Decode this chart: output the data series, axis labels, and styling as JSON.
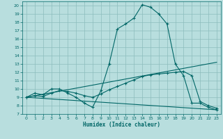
{
  "background_color": "#b8dede",
  "grid_color": "#8cbcbc",
  "line_color": "#006666",
  "xlim": [
    -0.5,
    23.5
  ],
  "ylim": [
    7,
    20.5
  ],
  "xticks": [
    0,
    1,
    2,
    3,
    4,
    5,
    6,
    7,
    8,
    9,
    10,
    11,
    12,
    13,
    14,
    15,
    16,
    17,
    18,
    19,
    20,
    21,
    22,
    23
  ],
  "yticks": [
    7,
    8,
    9,
    10,
    11,
    12,
    13,
    14,
    15,
    16,
    17,
    18,
    19,
    20
  ],
  "xlabel": "Humidex (Indice chaleur)",
  "line1_x": [
    0,
    1,
    2,
    3,
    4,
    5,
    6,
    7,
    8,
    9,
    10,
    11,
    12,
    13,
    14,
    15,
    16,
    17,
    18,
    19,
    20,
    21,
    22,
    23
  ],
  "line1_y": [
    9.0,
    9.5,
    9.3,
    10.0,
    10.0,
    9.5,
    9.0,
    8.3,
    7.8,
    9.8,
    13.0,
    17.2,
    17.8,
    18.5,
    20.1,
    19.8,
    19.0,
    17.8,
    13.0,
    11.6,
    8.3,
    8.3,
    7.8,
    7.5
  ],
  "line2_x": [
    0,
    1,
    2,
    3,
    4,
    5,
    6,
    7,
    8,
    9,
    10,
    11,
    12,
    13,
    14,
    15,
    16,
    17,
    18,
    19,
    20,
    21,
    22,
    23
  ],
  "line2_y": [
    9.0,
    9.2,
    9.1,
    9.5,
    9.8,
    9.7,
    9.5,
    9.2,
    9.0,
    9.4,
    9.9,
    10.3,
    10.7,
    11.1,
    11.5,
    11.7,
    11.8,
    11.9,
    12.0,
    12.1,
    11.6,
    8.5,
    8.0,
    7.7
  ],
  "line3_x": [
    0,
    23
  ],
  "line3_y": [
    9.0,
    13.2
  ],
  "line4_x": [
    0,
    23
  ],
  "line4_y": [
    9.0,
    7.5
  ]
}
